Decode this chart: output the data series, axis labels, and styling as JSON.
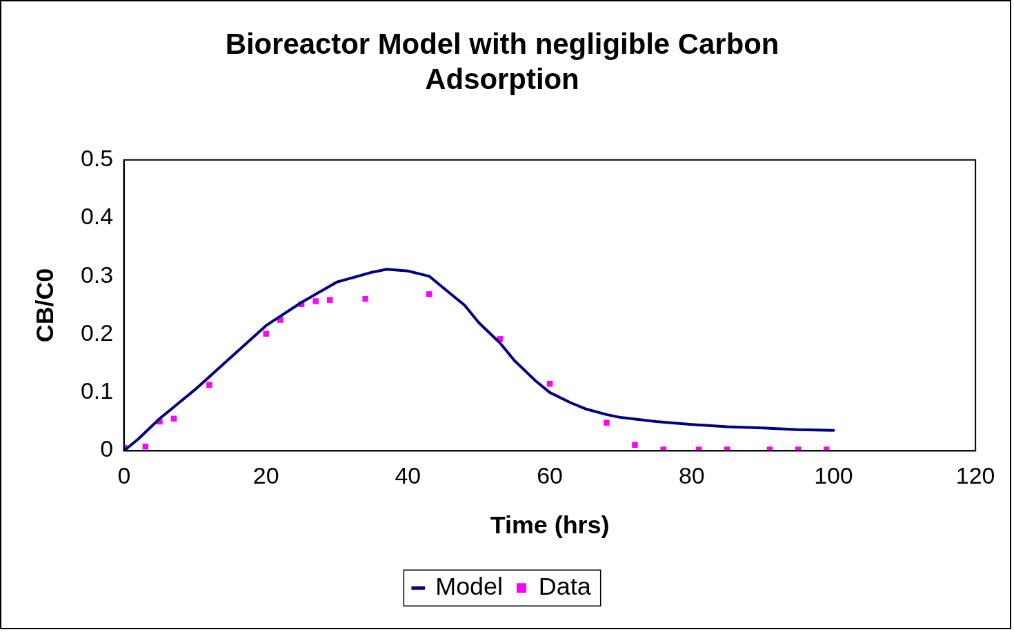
{
  "chart_data": {
    "type": "line",
    "title": "Bioreactor Model with negligible Carbon Adsorption",
    "xlabel": "Time (hrs)",
    "ylabel": "CB/C0",
    "xlim": [
      0,
      120
    ],
    "xticks": [
      0,
      20,
      40,
      60,
      80,
      100,
      120
    ],
    "ylim": [
      0,
      0.5
    ],
    "yticks": [
      0,
      0.1,
      0.2,
      0.3,
      0.4,
      0.5
    ],
    "grid": false,
    "legend": "bottom",
    "series": [
      {
        "name": "Model",
        "type": "line",
        "color": "#000080",
        "marker": "none",
        "line_style": "solid",
        "x": [
          0,
          2,
          5,
          7,
          10,
          15,
          20,
          25,
          30,
          35,
          37,
          40,
          43,
          45,
          48,
          50,
          53,
          55,
          58,
          60,
          63,
          65,
          68,
          70,
          75,
          80,
          85,
          90,
          95,
          100
        ],
        "values": [
          0,
          0.02,
          0.055,
          0.075,
          0.105,
          0.16,
          0.215,
          0.255,
          0.29,
          0.307,
          0.312,
          0.309,
          0.3,
          0.28,
          0.25,
          0.22,
          0.185,
          0.155,
          0.12,
          0.1,
          0.082,
          0.072,
          0.062,
          0.057,
          0.05,
          0.045,
          0.041,
          0.039,
          0.036,
          0.035
        ]
      },
      {
        "name": "Data",
        "type": "scatter",
        "color": "#ff00ff",
        "marker": "square",
        "x": [
          0,
          3,
          5,
          7,
          12,
          20,
          22,
          25,
          27,
          29,
          34,
          43,
          53,
          60,
          68,
          72,
          76,
          81,
          85,
          91,
          95,
          99
        ],
        "values": [
          0.005,
          0.007,
          0.05,
          0.055,
          0.113,
          0.201,
          0.225,
          0.252,
          0.257,
          0.259,
          0.261,
          0.269,
          0.192,
          0.115,
          0.048,
          0.01,
          0.002,
          0.002,
          0.002,
          0.002,
          0.002,
          0.002
        ]
      }
    ]
  }
}
